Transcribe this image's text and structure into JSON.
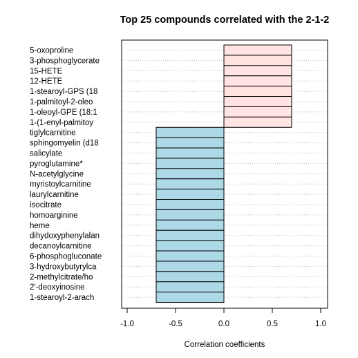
{
  "chart_data": {
    "type": "bar",
    "orientation": "horizontal",
    "title": "Top 25 compounds correlated with the 2-1-2",
    "xlabel": "Correlation coefficients",
    "ylabel": "",
    "xlim": [
      -1.0,
      1.0
    ],
    "xticks": [
      -1.0,
      -0.5,
      0.0,
      0.5,
      1.0
    ],
    "xtick_labels": [
      "-1.0",
      "-0.5",
      "0.0",
      "0.5",
      "1.0"
    ],
    "grid": "horizontal dotted",
    "categories": [
      "5-oxoproline",
      "3-phosphoglycerate",
      "15-HETE",
      "12-HETE",
      "1-stearoyl-GPS (18",
      "1-palmitoyl-2-oleo",
      "1-oleoyl-GPE (18:1",
      "1-(1-enyl-palmitoy",
      "tiglylcarnitine",
      "sphingomyelin (d18",
      "salicylate",
      "pyroglutamine*",
      "N-acetylglycine",
      "myristoylcarnitine",
      "laurylcarnitine",
      "isocitrate",
      "homoarginine",
      "heme",
      "dihydoxyphenylalan",
      "decanoylcarnitine",
      "6-phosphogluconate",
      "3-hydroxybutyrylca",
      "2-methylcitrate/ho",
      "2'-deoxyinosine",
      "1-stearoyl-2-arach"
    ],
    "values": [
      0.7,
      0.7,
      0.7,
      0.7,
      0.7,
      0.7,
      0.7,
      0.7,
      -0.7,
      -0.7,
      -0.7,
      -0.7,
      -0.7,
      -0.7,
      -0.7,
      -0.7,
      -0.7,
      -0.7,
      -0.7,
      -0.7,
      -0.7,
      -0.7,
      -0.7,
      -0.7,
      -0.7
    ],
    "colors": {
      "positive": "#ffe4e1",
      "negative": "#add8e6",
      "bar_border": "#000000",
      "grid": "#bdbdbd"
    }
  }
}
